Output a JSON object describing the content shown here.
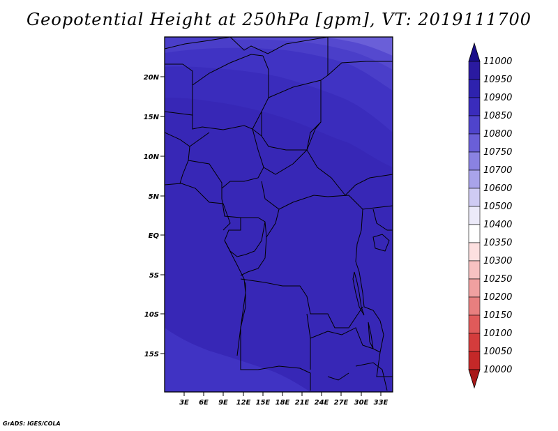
{
  "title": "Geopotential Height at 250hPa [gpm], VT: 2019111700",
  "credit": "GrADS: IGES/COLA",
  "map": {
    "lat_labels": [
      "20N",
      "15N",
      "10N",
      "5N",
      "EQ",
      "5S",
      "10S",
      "15S"
    ],
    "lon_labels": [
      "3E",
      "6E",
      "9E",
      "12E",
      "15E",
      "18E",
      "21E",
      "24E",
      "27E",
      "30E",
      "33E"
    ]
  },
  "colorbar": {
    "levels": [
      "11000",
      "10950",
      "10900",
      "10850",
      "10800",
      "10750",
      "10700",
      "10600",
      "10500",
      "10400",
      "10350",
      "10300",
      "10250",
      "10200",
      "10150",
      "10100",
      "10050",
      "10000"
    ],
    "colors": [
      "#1a0e8a",
      "#2a1aa0",
      "#2e22ae",
      "#3a2cbc",
      "#4f44cc",
      "#6a5fd8",
      "#8a82e2",
      "#a9a3ea",
      "#cfcbf3",
      "#eceaf9",
      "#ffffff",
      "#fde0e0",
      "#f8c2c2",
      "#f0a0a0",
      "#e87f7f",
      "#e05a5a",
      "#d43c3c",
      "#c42828",
      "#a81818"
    ]
  },
  "shading": {
    "background": "#3727b6",
    "bands": [
      "#3a2cbc",
      "#4033c3",
      "#4a3ec9",
      "#5549cf",
      "#6a5fd8"
    ]
  }
}
